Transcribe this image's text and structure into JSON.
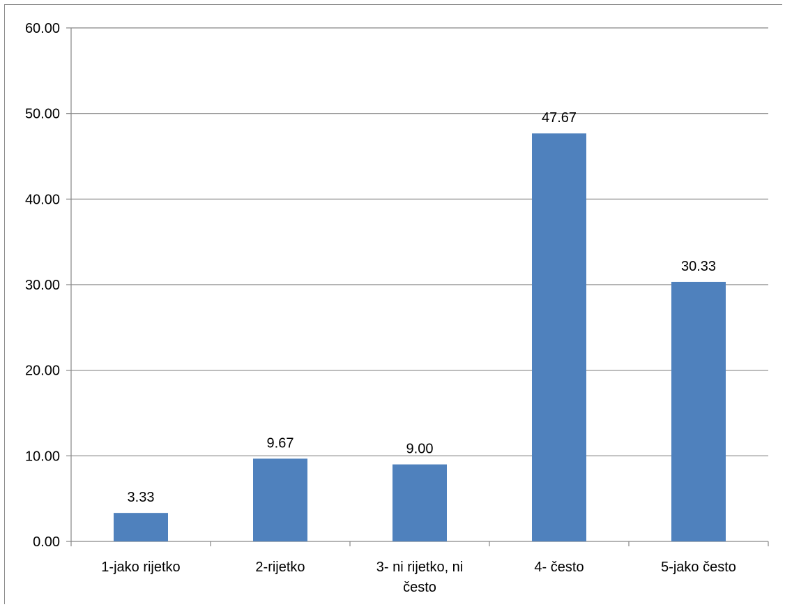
{
  "chart_data": {
    "type": "bar",
    "title": "",
    "xlabel": "",
    "ylabel": "",
    "categories": [
      "1-jako rijetko",
      "2-rijetko",
      "3- ni rijetko, ni često",
      "4- često",
      "5-jako često"
    ],
    "category_label_lines": [
      [
        "1-jako rijetko"
      ],
      [
        "2-rijetko"
      ],
      [
        "3- ni rijetko, ni",
        "često"
      ],
      [
        "4- često"
      ],
      [
        "5-jako često"
      ]
    ],
    "values": [
      3.33,
      9.67,
      9.0,
      47.67,
      30.33
    ],
    "data_labels": [
      "3.33",
      "9.67",
      "9.00",
      "47.67",
      "30.33"
    ],
    "ylim": [
      0,
      60
    ],
    "yticks": [
      0,
      10,
      20,
      30,
      40,
      50,
      60
    ],
    "ytick_labels": [
      "0.00",
      "10.00",
      "20.00",
      "30.00",
      "40.00",
      "50.00",
      "60.00"
    ],
    "grid": true,
    "legend": "none",
    "bar_color": "#4f81bd",
    "grid_color": "#868686"
  }
}
